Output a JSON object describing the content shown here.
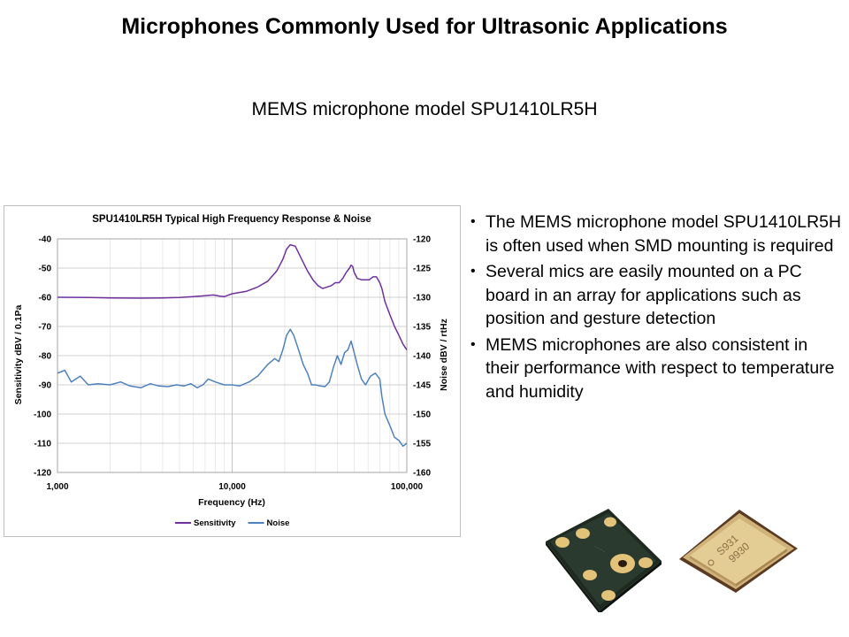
{
  "slide": {
    "title": "Microphones Commonly Used for Ultrasonic Applications",
    "subtitle": "MEMS microphone model SPU1410LR5H"
  },
  "bullets": [
    "The MEMS microphone model SPU1410LR5H is often used when SMD mounting is required",
    "Several mics are easily mounted on a PC board in an array for applications such as position and gesture detection",
    "MEMS microphones are also consistent in their performance with respect to temperature and humidity"
  ],
  "product_images": {
    "chip_marking_lines": [
      "S931",
      "9930"
    ]
  },
  "chart_data": {
    "type": "line",
    "title": "SPU1410LR5H Typical High Frequency Response & Noise",
    "xlabel": "Frequency (Hz)",
    "ylabel": "Sensitivity dBV / 0.1Pa",
    "y2label": "Noise dBV / rtHz",
    "xscale": "log",
    "xlim": [
      1000,
      100000
    ],
    "ylim": [
      -120,
      -40
    ],
    "y2lim": [
      -160,
      -120
    ],
    "x_ticks": [
      1000,
      10000,
      100000
    ],
    "x_tick_labels": [
      "1,000",
      "10,000",
      "100,000"
    ],
    "y_ticks": [
      -40,
      -50,
      -60,
      -70,
      -80,
      -90,
      -100,
      -110,
      -120
    ],
    "y2_ticks": [
      -120,
      -125,
      -130,
      -135,
      -140,
      -145,
      -150,
      -155,
      -160
    ],
    "grid": true,
    "legend": "bottom",
    "series": [
      {
        "name": "Sensitivity",
        "axis": "left",
        "color": "#7030a0",
        "x": [
          1000,
          1500,
          2000,
          3000,
          4000,
          5000,
          6000,
          7000,
          7800,
          8500,
          9000,
          10000,
          12000,
          14000,
          16000,
          18000,
          19500,
          20500,
          21500,
          23000,
          25000,
          27000,
          29000,
          31000,
          33000,
          35000,
          37000,
          39000,
          41000,
          43000,
          45000,
          47000,
          48000,
          49000,
          50000,
          52000,
          55000,
          58000,
          61000,
          64000,
          67000,
          70000,
          72000,
          75000,
          80000,
          85000,
          90000,
          95000,
          100000
        ],
        "y": [
          -60,
          -60.1,
          -60.2,
          -60.3,
          -60.2,
          -60.1,
          -59.8,
          -59.5,
          -59.2,
          -59.6,
          -59.8,
          -58.8,
          -58,
          -56.5,
          -54.5,
          -51,
          -47,
          -43.5,
          -42,
          -42.5,
          -47,
          -51,
          -54,
          -56,
          -57,
          -56.5,
          -56,
          -55,
          -55,
          -53.5,
          -51.5,
          -50,
          -49,
          -49.5,
          -51.5,
          -53.5,
          -54,
          -54,
          -54,
          -53,
          -53,
          -55,
          -57,
          -61.5,
          -66,
          -70,
          -73,
          -76,
          -78
        ]
      },
      {
        "name": "Noise",
        "axis": "right",
        "color": "#4f81bd",
        "x": [
          1000,
          1100,
          1200,
          1350,
          1500,
          1700,
          2000,
          2300,
          2600,
          3000,
          3400,
          3800,
          4300,
          4800,
          5300,
          5800,
          6300,
          6800,
          7300,
          8000,
          9000,
          10000,
          11000,
          12500,
          14000,
          16000,
          17500,
          18500,
          19500,
          20500,
          21500,
          22500,
          24000,
          25500,
          27000,
          28500,
          30000,
          32000,
          34000,
          36000,
          38000,
          40000,
          42000,
          44000,
          46000,
          48000,
          50000,
          52000,
          55000,
          58000,
          62000,
          66000,
          70000,
          72000,
          75000,
          80000,
          85000,
          90000,
          95000,
          100000
        ],
        "y": [
          -143,
          -142.5,
          -144.5,
          -143.5,
          -145,
          -144.8,
          -145,
          -144.5,
          -145.2,
          -145.5,
          -144.8,
          -145.2,
          -145.3,
          -145,
          -145.2,
          -144.8,
          -145.5,
          -145,
          -144,
          -144.5,
          -145,
          -145,
          -145.2,
          -144.5,
          -143.5,
          -141.5,
          -140.5,
          -141,
          -139,
          -136.5,
          -135.5,
          -136.5,
          -139,
          -141.5,
          -143,
          -145,
          -145,
          -145.2,
          -145.3,
          -144.5,
          -142,
          -140,
          -141.5,
          -139.5,
          -139,
          -137.5,
          -139.5,
          -141.5,
          -144,
          -145,
          -143.5,
          -143,
          -144,
          -147,
          -150,
          -152,
          -154,
          -154.5,
          -155.5,
          -155
        ]
      }
    ]
  }
}
